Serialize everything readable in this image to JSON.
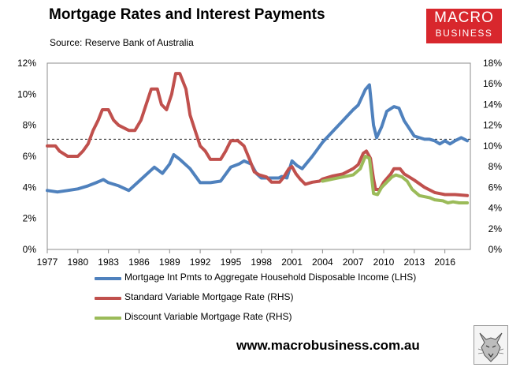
{
  "header": {
    "title": "Mortgage Rates and Interest Payments",
    "subtitle": "Source: Reserve Bank of Australia"
  },
  "logo": {
    "line1": "MACRO",
    "line2": "BUSINESS"
  },
  "footer": {
    "url": "www.macrobusiness.com.au"
  },
  "colors": {
    "lhs": "#4f81bd",
    "svr": "#c0504d",
    "dvr": "#9bbb59",
    "logo": "#d8272d"
  },
  "chart_data": {
    "type": "line",
    "x_ticks": [
      "1977",
      "1980",
      "1983",
      "1986",
      "1989",
      "1992",
      "1995",
      "1998",
      "2001",
      "2004",
      "2007",
      "2010",
      "2013",
      "2016"
    ],
    "xlim": [
      1977,
      2018.5
    ],
    "y_left": {
      "ylim": [
        0,
        12
      ],
      "ticks": [
        "0%",
        "2%",
        "4%",
        "6%",
        "8%",
        "10%",
        "12%"
      ]
    },
    "y_right": {
      "ylim": [
        0,
        18
      ],
      "ticks": [
        "0%",
        "2%",
        "4%",
        "6%",
        "8%",
        "10%",
        "12%",
        "14%",
        "16%",
        "18%"
      ]
    },
    "grid": false,
    "legend_position": "bottom",
    "reference_line": {
      "axis": "left",
      "value": 7.1,
      "style": "dashed"
    },
    "series": [
      {
        "name": "Mortgage Int Pmts to Aggregate Household Disposable Income (LHS)",
        "axis": "left",
        "x": [
          1977,
          1978,
          1979,
          1980,
          1981,
          1981.8,
          1982.5,
          1983,
          1984,
          1985,
          1986,
          1987,
          1987.5,
          1988.3,
          1989,
          1989.4,
          1990,
          1991,
          1992,
          1993,
          1994,
          1995,
          1995.8,
          1996.3,
          1997,
          1997.5,
          1998,
          1999,
          1999.7,
          2000,
          2000.5,
          2001,
          2001.5,
          2002,
          2003,
          2004,
          2005,
          2006,
          2007,
          2007.5,
          2008.2,
          2008.6,
          2009,
          2009.3,
          2009.8,
          2010.3,
          2011,
          2011.5,
          2012,
          2013,
          2014,
          2014.5,
          2015,
          2015.5,
          2016,
          2016.5,
          2017,
          2017.6,
          2018.2
        ],
        "values": [
          3.8,
          3.7,
          3.8,
          3.9,
          4.1,
          4.3,
          4.5,
          4.3,
          4.1,
          3.8,
          4.4,
          5.0,
          5.3,
          4.9,
          5.5,
          6.1,
          5.8,
          5.2,
          4.3,
          4.3,
          4.4,
          5.3,
          5.5,
          5.7,
          5.5,
          4.9,
          4.6,
          4.6,
          4.6,
          4.7,
          4.6,
          5.7,
          5.4,
          5.2,
          6.0,
          6.9,
          7.6,
          8.3,
          9.0,
          9.3,
          10.3,
          10.6,
          8.0,
          7.2,
          7.9,
          8.9,
          9.2,
          9.1,
          8.3,
          7.3,
          7.1,
          7.1,
          7.0,
          6.8,
          7.0,
          6.8,
          7.0,
          7.2,
          7.0
        ]
      },
      {
        "name": "Standard Variable Mortgage Rate (RHS)",
        "axis": "right",
        "x": [
          1977,
          1977.8,
          1978.2,
          1979,
          1980,
          1980.5,
          1981,
          1981.5,
          1982,
          1982.4,
          1983,
          1983.5,
          1984,
          1985,
          1985.6,
          1986.2,
          1986.7,
          1987.2,
          1987.8,
          1988.2,
          1988.7,
          1989.2,
          1989.6,
          1990,
          1990.6,
          1991,
          1991.5,
          1992,
          1992.5,
          1993,
          1994,
          1994.5,
          1995,
          1995.7,
          1996.3,
          1996.8,
          1997.3,
          1997.8,
          1998.5,
          1999,
          1999.8,
          2000.2,
          2000.7,
          2001,
          2001.4,
          2001.8,
          2002.3,
          2003,
          2003.7,
          2004,
          2005,
          2006,
          2007,
          2007.5,
          2008,
          2008.3,
          2008.7,
          2009,
          2009.2,
          2009.6,
          2010,
          2010.7,
          2011,
          2011.6,
          2012,
          2012.5,
          2013,
          2014,
          2015,
          2015.5,
          2016,
          2017,
          2018.2
        ],
        "values": [
          10.0,
          10.0,
          9.5,
          9.0,
          9.0,
          9.5,
          10.2,
          11.5,
          12.5,
          13.5,
          13.5,
          12.5,
          12.0,
          11.5,
          11.5,
          12.5,
          14.0,
          15.5,
          15.5,
          14.0,
          13.5,
          15.0,
          17.0,
          17.0,
          15.5,
          13.0,
          11.5,
          10.0,
          9.5,
          8.7,
          8.7,
          9.5,
          10.5,
          10.5,
          10.0,
          8.8,
          7.5,
          7.2,
          7.0,
          6.5,
          6.5,
          7.0,
          7.8,
          8.0,
          7.3,
          6.8,
          6.3,
          6.5,
          6.6,
          6.8,
          7.1,
          7.3,
          7.8,
          8.2,
          9.3,
          9.5,
          8.8,
          6.8,
          5.8,
          5.8,
          6.5,
          7.3,
          7.8,
          7.8,
          7.3,
          7.0,
          6.7,
          6.0,
          5.5,
          5.4,
          5.3,
          5.3,
          5.2
        ]
      },
      {
        "name": "Discount Variable Mortgage Rate (RHS)",
        "axis": "right",
        "x": [
          2004,
          2005,
          2006,
          2007,
          2007.7,
          2008.2,
          2008.6,
          2009,
          2009.4,
          2009.8,
          2010.3,
          2010.8,
          2011.2,
          2011.8,
          2012.3,
          2012.8,
          2013.5,
          2014.5,
          2015,
          2015.8,
          2016.3,
          2016.8,
          2017.4,
          2018.2
        ],
        "values": [
          6.6,
          6.8,
          7.0,
          7.2,
          7.8,
          9.0,
          8.8,
          5.4,
          5.3,
          6.0,
          6.5,
          7.0,
          7.2,
          7.0,
          6.6,
          5.8,
          5.2,
          5.0,
          4.8,
          4.7,
          4.5,
          4.6,
          4.5,
          4.5
        ]
      }
    ]
  }
}
